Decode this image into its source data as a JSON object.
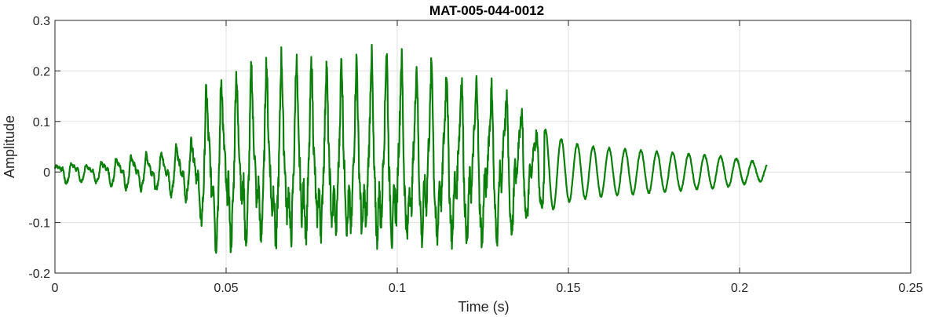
{
  "chart_data": {
    "type": "line",
    "title": "MAT-005-044-0012",
    "xlabel": "Time (s)",
    "ylabel": "Amplitude",
    "xlim": [
      0,
      0.25
    ],
    "ylim": [
      -0.2,
      0.3
    ],
    "grid": true,
    "x_ticks": [
      0,
      0.05,
      0.1,
      0.15,
      0.2,
      0.25
    ],
    "x_tick_labels": [
      "0",
      "0.05",
      "0.1",
      "0.15",
      "0.2",
      "0.25"
    ],
    "y_ticks": [
      -0.2,
      -0.1,
      0,
      0.1,
      0.2,
      0.3
    ],
    "y_tick_labels": [
      "-0.2",
      "-0.1",
      "0",
      "0.1",
      "0.2",
      "0.3"
    ],
    "series": [
      {
        "color": "#0a800a",
        "x": [
          0,
          0.005,
          0.01,
          0.015,
          0.02,
          0.025,
          0.03,
          0.035,
          0.04,
          0.045,
          0.05,
          0.055,
          0.06,
          0.065,
          0.07,
          0.075,
          0.08,
          0.085,
          0.09,
          0.095,
          0.1,
          0.105,
          0.11,
          0.115,
          0.12,
          0.125,
          0.13,
          0.135,
          0.14,
          0.145,
          0.15,
          0.155,
          0.16,
          0.165,
          0.17,
          0.175,
          0.18,
          0.185,
          0.19,
          0.195,
          0.2,
          0.205,
          0.208
        ],
        "envelope": [
          0.022,
          0.028,
          0.018,
          0.032,
          0.038,
          0.042,
          0.045,
          0.06,
          0.07,
          0.19,
          0.19,
          0.2,
          0.2,
          0.22,
          0.21,
          0.2,
          0.2,
          0.21,
          0.21,
          0.23,
          0.22,
          0.2,
          0.21,
          0.2,
          0.19,
          0.19,
          0.17,
          0.15,
          0.1,
          0.075,
          0.058,
          0.052,
          0.048,
          0.045,
          0.043,
          0.04,
          0.038,
          0.035,
          0.033,
          0.03,
          0.025,
          0.02,
          0.015
        ],
        "offset": [
          0,
          0,
          0,
          0,
          0,
          0,
          0,
          0,
          0,
          0.01,
          0.01,
          0.02,
          0.03,
          0.03,
          0.03,
          0.03,
          0.02,
          0.02,
          0.02,
          0.03,
          0.03,
          0.03,
          0.03,
          0.03,
          0.02,
          0.02,
          0.02,
          0.02,
          0.01,
          0.005,
          0,
          0,
          0.005,
          0.005,
          0.005,
          0.005,
          0.005,
          0.005,
          0.002,
          0.002,
          0.002,
          0,
          0
        ]
      }
    ]
  }
}
